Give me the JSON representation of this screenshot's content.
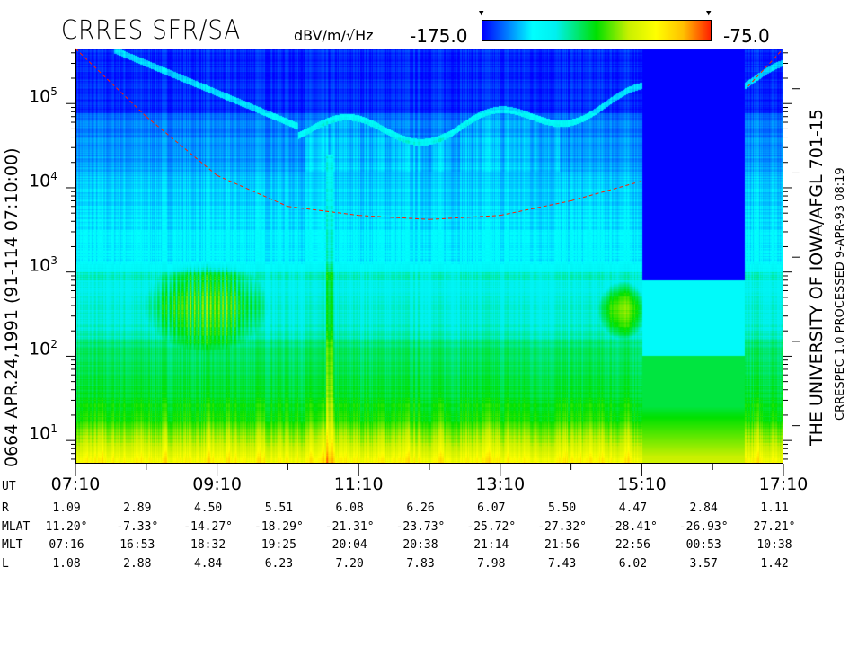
{
  "header": {
    "title": "CRRES SFR/SA",
    "units": "dBV/m/√Hz",
    "colorbar_min_label": "-175.0",
    "colorbar_max_label": "-75.0",
    "colorbar_marker": "▼"
  },
  "left_label": "0664   APR.24,1991   (91-114 07:10:00)",
  "right_label_main": "THE UNIVERSITY OF IOWA/AFGL 701-15",
  "right_label_small": "CRRESPEC 1.0   PROCESSED  9-APR-93  08:19",
  "chart_data": {
    "type": "heatmap",
    "title": "CRRES SFR/SA",
    "colorbar": {
      "label": "dBV/m/√Hz",
      "range": [
        -175.0,
        -75.0
      ],
      "colors": [
        "#0000ff",
        "#00ffff",
        "#00e000",
        "#ffff00",
        "#ff2000"
      ]
    },
    "x_axis": {
      "label": "UT",
      "range": [
        "07:10",
        "17:10"
      ],
      "tick_labels": [
        "07:10",
        "09:10",
        "11:10",
        "13:10",
        "15:10",
        "17:10"
      ],
      "minor_ticks_every": "1 hour"
    },
    "y_axis": {
      "scale": "log",
      "unit": "Hz",
      "range": [
        5.3,
        450000
      ],
      "tick_labels": [
        {
          "base": "10",
          "exp": "1",
          "value": 10
        },
        {
          "base": "10",
          "exp": "2",
          "value": 100
        },
        {
          "base": "10",
          "exp": "3",
          "value": 1000
        },
        {
          "base": "10",
          "exp": "4",
          "value": 10000
        },
        {
          "base": "10",
          "exp": "5",
          "value": 100000
        }
      ]
    },
    "overlay_line": {
      "color": "#ff2000",
      "style": "dashed",
      "points_ut_hz": [
        [
          "07:10",
          450000
        ],
        [
          "08:10",
          70000
        ],
        [
          "09:10",
          14000
        ],
        [
          "10:10",
          6000
        ],
        [
          "11:10",
          4700
        ],
        [
          "12:10",
          4200
        ],
        [
          "13:10",
          4700
        ],
        [
          "14:10",
          7000
        ],
        [
          "15:10",
          12000
        ],
        [
          "16:40",
          160000
        ],
        [
          "17:10",
          450000
        ]
      ]
    },
    "data_gap": [
      "15:10",
      "16:40"
    ]
  },
  "ephemeris": {
    "ut_label": "UT",
    "ut": [
      "07:10",
      "",
      "09:10",
      "",
      "11:10",
      "",
      "13:10",
      "",
      "15:10",
      "",
      "17:10"
    ],
    "rows": [
      {
        "label": "R",
        "values": [
          "1.09",
          "2.89",
          "4.50",
          "5.51",
          "6.08",
          "6.26",
          "6.07",
          "5.50",
          "4.47",
          "2.84",
          "1.11"
        ]
      },
      {
        "label": "MLAT",
        "values": [
          "11.20°",
          "-7.33°",
          "-14.27°",
          "-18.29°",
          "-21.31°",
          "-23.73°",
          "-25.72°",
          "-27.32°",
          "-28.41°",
          "-26.93°",
          "27.21°"
        ]
      },
      {
        "label": "MLT",
        "values": [
          "07:16",
          "16:53",
          "18:32",
          "19:25",
          "20:04",
          "20:38",
          "21:14",
          "21:56",
          "22:56",
          "00:53",
          "10:38"
        ]
      },
      {
        "label": "L",
        "values": [
          "1.08",
          "2.88",
          "4.84",
          "6.23",
          "7.20",
          "7.83",
          "7.98",
          "7.43",
          "6.02",
          "3.57",
          "1.42"
        ]
      }
    ]
  }
}
